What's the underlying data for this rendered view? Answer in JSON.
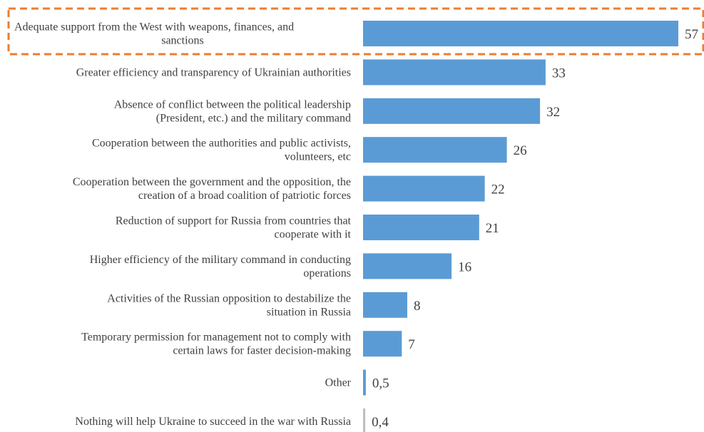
{
  "chart_data": {
    "type": "bar",
    "orientation": "horizontal",
    "categories": [
      [
        "Adequate support from the West with weapons, finances, and",
        "sanctions"
      ],
      [
        "Greater efficiency and transparency of Ukrainian authorities"
      ],
      [
        "Absence of conflict between the political leadership",
        "(President, etc.) and the military command"
      ],
      [
        "Cooperation between the authorities and public activists,",
        "volunteers, etc"
      ],
      [
        "Cooperation between the government and the opposition, the",
        "creation of a broad coalition of patriotic forces"
      ],
      [
        "Reduction of support for Russia from countries that",
        "cooperate with it"
      ],
      [
        "Higher efficiency of the military command in conducting",
        "operations"
      ],
      [
        "Activities of the Russian opposition to destabilize the",
        "situation in Russia"
      ],
      [
        "Temporary permission for management not to comply with",
        "certain laws for faster decision-making"
      ],
      [
        "Other"
      ],
      [
        "Nothing will help Ukraine to succeed in the war with Russia"
      ]
    ],
    "values": [
      57,
      33,
      32,
      26,
      22,
      21,
      16,
      8,
      7,
      0.5,
      0.4
    ],
    "value_labels": [
      "57",
      "33",
      "32",
      "26",
      "22",
      "21",
      "16",
      "8",
      "7",
      "0,5",
      "0,4"
    ],
    "bar_colors": [
      "#5b9bd5",
      "#5b9bd5",
      "#5b9bd5",
      "#5b9bd5",
      "#5b9bd5",
      "#5b9bd5",
      "#5b9bd5",
      "#5b9bd5",
      "#5b9bd5",
      "#5b9bd5",
      "#bfbfbf"
    ],
    "highlighted_index": 0,
    "highlight_color": "#ed7d31",
    "axes_shown": false,
    "grid": false,
    "xlim": [
      0,
      57
    ]
  }
}
